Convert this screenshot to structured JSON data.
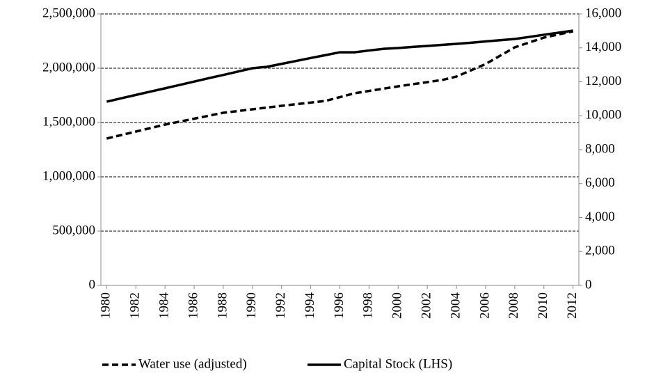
{
  "chart_data": {
    "type": "line",
    "x": [
      1980,
      1981,
      1982,
      1983,
      1984,
      1985,
      1986,
      1987,
      1988,
      1989,
      1990,
      1991,
      1992,
      1993,
      1994,
      1995,
      1996,
      1997,
      1998,
      1999,
      2000,
      2001,
      2002,
      2003,
      2004,
      2005,
      2006,
      2007,
      2008,
      2009,
      2010,
      2011,
      2012
    ],
    "xlim": [
      1979.6,
      2012.4
    ],
    "xticks": [
      1980,
      1982,
      1984,
      1986,
      1988,
      1990,
      1992,
      1994,
      1996,
      1998,
      2000,
      2002,
      2004,
      2006,
      2008,
      2010,
      2012
    ],
    "ylim": [
      0,
      2500000
    ],
    "yticks": [
      0,
      {
        "value": 500000,
        "label": "500,000"
      },
      {
        "value": 1000000,
        "label": "1,000,000"
      },
      {
        "value": 1500000,
        "label": "1,500,000"
      },
      {
        "value": 2000000,
        "label": "2,000,000"
      },
      {
        "value": 2500000,
        "label": "2,500,000"
      }
    ],
    "y2lim": [
      0,
      16000
    ],
    "y2ticks": [
      0,
      {
        "value": 2000,
        "label": "2,000"
      },
      {
        "value": 4000,
        "label": "4,000"
      },
      {
        "value": 6000,
        "label": "6,000"
      },
      {
        "value": 8000,
        "label": "8,000"
      },
      {
        "value": 10000,
        "label": "10,000"
      },
      {
        "value": 12000,
        "label": "12,000"
      },
      {
        "value": 14000,
        "label": "14,000"
      },
      {
        "value": 16000,
        "label": "16,000"
      }
    ],
    "grid": true,
    "legend": "bottom",
    "series": [
      {
        "name": "Water use (adjusted)",
        "color": "#000000",
        "dashed": true,
        "axis": "y2",
        "values": [
          8656,
          8861,
          9067,
          9272,
          9477,
          9651,
          9826,
          10000,
          10174,
          10277,
          10380,
          10482,
          10585,
          10681,
          10776,
          10872,
          11097,
          11323,
          11460,
          11596,
          11733,
          11856,
          11979,
          12103,
          12308,
          12677,
          13046,
          13538,
          14031,
          14318,
          14605,
          14790,
          14974
        ]
      },
      {
        "name": "Capital Stock (LHS)",
        "color": "#000000",
        "dashed": false,
        "values": [
          1692000,
          1723000,
          1754000,
          1785000,
          1815000,
          1846000,
          1877000,
          1908000,
          1938000,
          1969000,
          2000000,
          2013000,
          2040000,
          2067000,
          2094000,
          2120000,
          2147000,
          2147000,
          2163000,
          2179000,
          2186000,
          2196000,
          2205000,
          2215000,
          2224000,
          2235000,
          2247000,
          2258000,
          2269000,
          2288000,
          2308000,
          2327000,
          2346000
        ]
      }
    ]
  }
}
